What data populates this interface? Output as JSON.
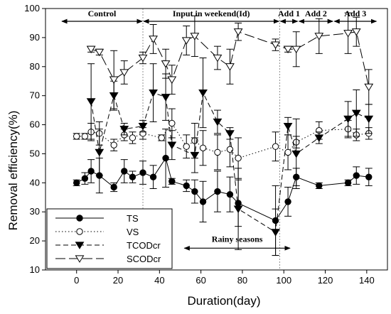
{
  "chart_data": {
    "type": "line",
    "xlabel": "Duration(day)",
    "ylabel": "Removal efficiency(%)",
    "xlim": [
      -15,
      150
    ],
    "ylim": [
      10,
      100
    ],
    "xticks": [
      0,
      20,
      40,
      60,
      80,
      100,
      120,
      140
    ],
    "yticks": [
      10,
      20,
      30,
      40,
      50,
      60,
      70,
      80,
      90,
      100
    ],
    "grid": false,
    "legend_position": "bottom-left",
    "phase_dividers": [
      32,
      98
    ],
    "phases": [
      {
        "label": "Control",
        "from": -15,
        "to": 32
      },
      {
        "label": "Input in weekend(Id)",
        "from": 32,
        "to": 98
      },
      {
        "label": "Add 1",
        "from": 98,
        "to": 107
      },
      {
        "label": "Add 2",
        "from": 107,
        "to": 124
      },
      {
        "label": "Add 3",
        "from": 124,
        "to": 145
      }
    ],
    "rainy_season": {
      "label": "Rainy seasons",
      "from": 52,
      "to": 103,
      "y": 17.5
    },
    "series": [
      {
        "name": "TS",
        "marker": "filled-circle",
        "dash": "solid",
        "x": [
          0,
          4,
          7,
          11,
          18,
          23,
          27,
          32,
          37,
          43,
          46,
          53,
          57,
          61,
          68,
          74,
          78,
          96,
          102,
          106,
          117,
          131,
          135,
          141
        ],
        "y": [
          40,
          41.5,
          44,
          42.5,
          38.5,
          44,
          42,
          43.5,
          42,
          48.5,
          40.5,
          39,
          37,
          33.5,
          37,
          36,
          33,
          27,
          33.5,
          42,
          39,
          40,
          42.5,
          42
        ],
        "err": [
          1,
          2,
          4,
          6,
          1.5,
          4,
          2,
          4,
          4,
          10,
          1,
          2,
          4,
          7,
          7,
          6,
          8,
          12,
          5,
          3,
          1,
          1,
          3,
          3
        ]
      },
      {
        "name": "VS",
        "marker": "open-circle",
        "dash": "dotted",
        "x": [
          0,
          4,
          7,
          11,
          18,
          23,
          27,
          32,
          41,
          46,
          53,
          57,
          61,
          68,
          74,
          78,
          96,
          102,
          106,
          117,
          131,
          135,
          141
        ],
        "y": [
          56,
          56,
          57.5,
          57,
          53,
          56.5,
          55.5,
          57,
          55.5,
          60.5,
          52.5,
          54.5,
          52,
          50.5,
          51.5,
          48.5,
          52.5,
          50.5,
          54,
          58,
          58.5,
          56.5,
          57
        ],
        "err": [
          1,
          1,
          3,
          4,
          2,
          2,
          2,
          2,
          1,
          5,
          4,
          6,
          6,
          6,
          6,
          7,
          5,
          6,
          2,
          3,
          3,
          2,
          2
        ]
      },
      {
        "name": "TCODcr",
        "marker": "filled-triangle-down",
        "dash": "dashed",
        "x": [
          7,
          11,
          18,
          23,
          32,
          37,
          43,
          46,
          57,
          61,
          68,
          74,
          78,
          96,
          102,
          106,
          117,
          131,
          135,
          141
        ],
        "y": [
          68,
          50.5,
          70,
          58.5,
          59.5,
          71,
          69.5,
          53,
          49.5,
          71,
          61,
          57,
          31,
          23,
          59.5,
          50,
          55.5,
          62,
          64,
          62
        ],
        "err": [
          13,
          8,
          5,
          2,
          2,
          10,
          8,
          5,
          6,
          12,
          4,
          2,
          14,
          8,
          3,
          12,
          2,
          6,
          8,
          5
        ]
      },
      {
        "name": "SCODcr",
        "marker": "open-triangle-down",
        "dash": "long-dash",
        "x": [
          7,
          11,
          18,
          23,
          32,
          37,
          43,
          46,
          53,
          57,
          68,
          74,
          78,
          96,
          102,
          106,
          117,
          131,
          135,
          141
        ],
        "y": [
          86,
          85,
          75.5,
          78,
          83,
          89.5,
          81,
          75.5,
          89,
          90.5,
          83,
          80,
          92,
          87.5,
          86,
          86,
          90.5,
          91.5,
          92,
          73
        ],
        "err": [
          1,
          1,
          10,
          4,
          2,
          5,
          5,
          5,
          5,
          7,
          4,
          6,
          3,
          2,
          1,
          6,
          6,
          7,
          5,
          6
        ]
      }
    ]
  }
}
